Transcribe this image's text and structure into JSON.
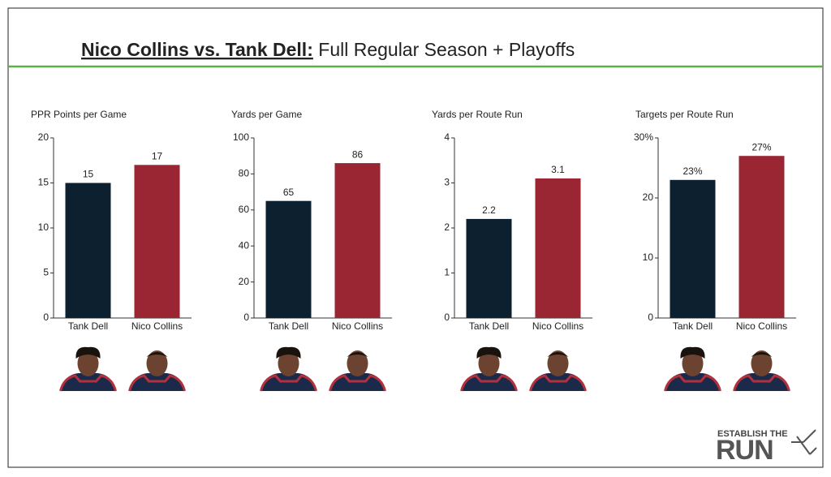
{
  "header": {
    "title_lead": "Nico Collins vs. Tank Dell:",
    "title_rest": " Full Regular Season + Playoffs"
  },
  "logo": {
    "top": "ESTABLISH THE",
    "bottom": "RUN"
  },
  "chart_data": [
    {
      "type": "bar",
      "title": "PPR Points per Game",
      "categories": [
        "Tank Dell",
        "Nico Collins"
      ],
      "values": [
        15,
        17
      ],
      "colors": [
        "#0c2030",
        "#9a2533"
      ],
      "ylim": [
        0,
        20
      ],
      "yticks": [
        0,
        5,
        10,
        15,
        20
      ]
    },
    {
      "type": "bar",
      "title": "Yards per Game",
      "categories": [
        "Tank Dell",
        "Nico Collins"
      ],
      "values": [
        65,
        86
      ],
      "colors": [
        "#0c2030",
        "#9a2533"
      ],
      "ylim": [
        0,
        100
      ],
      "yticks": [
        0,
        20,
        40,
        60,
        80,
        100
      ]
    },
    {
      "type": "bar",
      "title": "Yards per Route Run",
      "categories": [
        "Tank Dell",
        "Nico Collins"
      ],
      "values": [
        2.2,
        3.1
      ],
      "colors": [
        "#0c2030",
        "#9a2533"
      ],
      "ylim": [
        0,
        4
      ],
      "yticks": [
        0,
        1,
        2,
        3,
        4
      ]
    },
    {
      "type": "bar",
      "title": "Targets per Route Run",
      "categories": [
        "Tank Dell",
        "Nico Collins"
      ],
      "values": [
        23,
        27
      ],
      "value_labels": [
        "23%",
        "27%"
      ],
      "colors": [
        "#0c2030",
        "#9a2533"
      ],
      "ylim": [
        0,
        30
      ],
      "yticks": [
        0,
        10,
        20,
        {
          "value": 30,
          "label": "30%"
        }
      ]
    }
  ]
}
